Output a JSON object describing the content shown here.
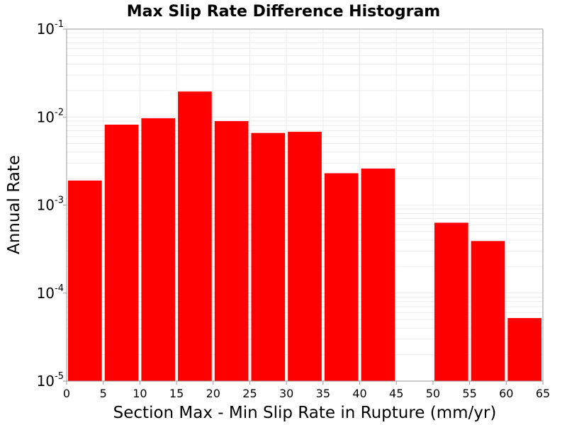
{
  "chart_data": {
    "type": "bar",
    "title": "Max Slip Rate Difference Histogram",
    "xlabel": "Section Max - Min Slip Rate in Rupture (mm/yr)",
    "ylabel": "Annual Rate",
    "bin_width": 5,
    "bins": [
      {
        "x_start": 0,
        "x_end": 5,
        "value": 0.0019
      },
      {
        "x_start": 5,
        "x_end": 10,
        "value": 0.0082
      },
      {
        "x_start": 10,
        "x_end": 15,
        "value": 0.0097
      },
      {
        "x_start": 15,
        "x_end": 20,
        "value": 0.0195
      },
      {
        "x_start": 20,
        "x_end": 25,
        "value": 0.009
      },
      {
        "x_start": 25,
        "x_end": 30,
        "value": 0.0066
      },
      {
        "x_start": 30,
        "x_end": 35,
        "value": 0.0068
      },
      {
        "x_start": 35,
        "x_end": 40,
        "value": 0.0023
      },
      {
        "x_start": 40,
        "x_end": 45,
        "value": 0.0026
      },
      {
        "x_start": 45,
        "x_end": 50,
        "value": 0
      },
      {
        "x_start": 50,
        "x_end": 55,
        "value": 0.00063
      },
      {
        "x_start": 55,
        "x_end": 60,
        "value": 0.00039
      },
      {
        "x_start": 60,
        "x_end": 65,
        "value": 5.2e-05
      }
    ],
    "xlim": [
      0,
      65
    ],
    "ylim": [
      1e-05,
      0.1
    ],
    "y_scale": "log",
    "x_ticks": [
      "0",
      "5",
      "10",
      "15",
      "20",
      "25",
      "30",
      "35",
      "40",
      "45",
      "50",
      "55",
      "60",
      "65"
    ],
    "y_ticks": [
      {
        "value": 0.1,
        "base": "10",
        "exp": "-1"
      },
      {
        "value": 0.01,
        "base": "10",
        "exp": "-2"
      },
      {
        "value": 0.001,
        "base": "10",
        "exp": "-3"
      },
      {
        "value": 0.0001,
        "base": "10",
        "exp": "-4"
      },
      {
        "value": 1e-05,
        "base": "10",
        "exp": "-5"
      }
    ],
    "grid": true,
    "legend": false,
    "colors": {
      "bar": "#ff0000",
      "grid": "#ececec",
      "axis": "#999999"
    }
  }
}
